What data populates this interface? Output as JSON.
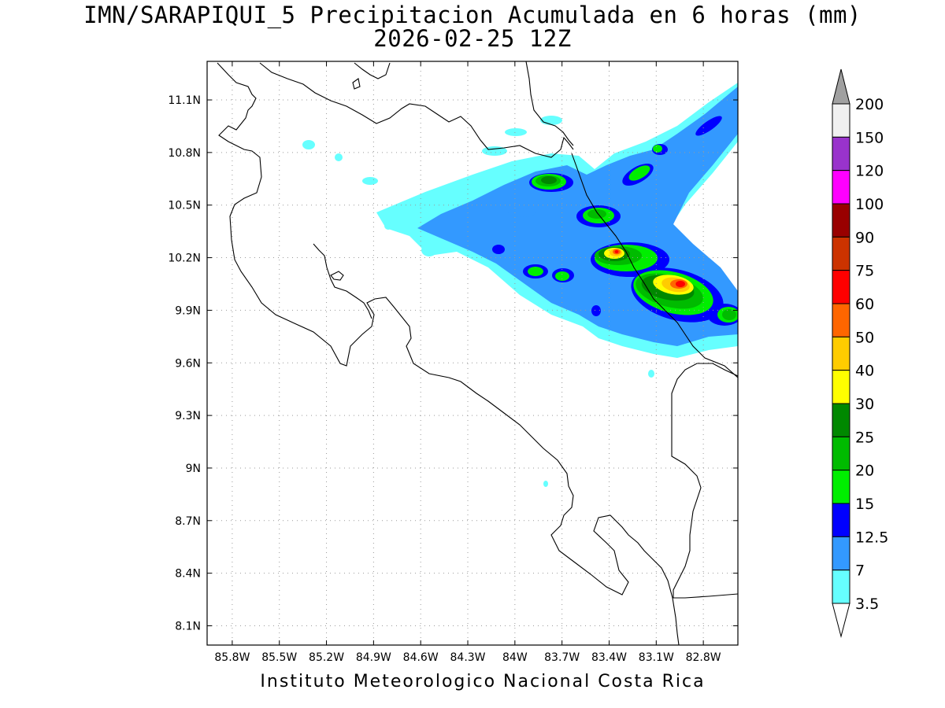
{
  "title": "IMN/SARAPIQUI_5 Precipitacion Acumulada en 6 horas (mm)",
  "subtitle": "2026-02-25 12Z",
  "footer": "Instituto Meteorologico Nacional Costa Rica",
  "map": {
    "lon_range": [
      -85.96,
      -82.58
    ],
    "lat_range": [
      7.99,
      11.32
    ],
    "lon_ticks": [
      "85.8W",
      "85.5W",
      "85.2W",
      "84.9W",
      "84.6W",
      "84.3W",
      "84W",
      "83.7W",
      "83.4W",
      "83.1W",
      "82.8W"
    ],
    "lat_ticks": [
      "11.1N",
      "10.8N",
      "10.5N",
      "10.2N",
      "9.9N",
      "9.6N",
      "9.3N",
      "9N",
      "8.7N",
      "8.4N",
      "8.1N"
    ],
    "grid": "dotted"
  },
  "colorbar": {
    "labels": [
      "3.5",
      "7",
      "12.5",
      "15",
      "20",
      "25",
      "30",
      "40",
      "50",
      "60",
      "75",
      "90",
      "100",
      "120",
      "150",
      "200"
    ],
    "colors": [
      "#ffffff",
      "#66ffff",
      "#3399ff",
      "#0000ff",
      "#00ee00",
      "#00bb00",
      "#008800",
      "#ffff00",
      "#ffcc00",
      "#ff6600",
      "#ff0000",
      "#cc3300",
      "#990000",
      "#ff00ff",
      "#9933cc",
      "#f0f0f0",
      "#a0a0a0"
    ]
  }
}
